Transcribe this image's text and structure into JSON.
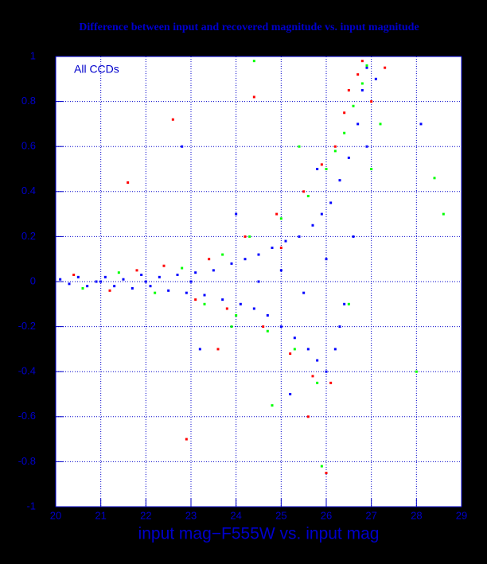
{
  "chart_data": {
    "type": "scatter",
    "title": "Difference between input and recovered magnitude vs. input magnitude",
    "annotation": "All CCDs",
    "xlabel": "input mag−F555W vs. input mag",
    "xlim": [
      20,
      29
    ],
    "ylim": [
      -1,
      1
    ],
    "xticks": [
      20,
      21,
      22,
      23,
      24,
      25,
      26,
      27,
      28,
      29
    ],
    "yticks": [
      -1,
      -0.8,
      -0.6,
      -0.4,
      -0.2,
      0,
      0.2,
      0.4,
      0.6,
      0.8,
      1
    ],
    "grid": true,
    "series": [
      {
        "name": "blue",
        "color": "#0000ff",
        "x": [
          20.1,
          20.3,
          20.5,
          20.7,
          20.9,
          21.1,
          21.3,
          21.5,
          21.7,
          21.9,
          22.1,
          22.3,
          22.5,
          22.7,
          22.9,
          23.1,
          23.3,
          23.5,
          23.7,
          23.9,
          24.1,
          24.2,
          24.4,
          24.5,
          24.7,
          24.8,
          25.0,
          25.1,
          25.3,
          25.4,
          25.6,
          25.7,
          25.8,
          25.9,
          26.0,
          26.1,
          26.2,
          26.3,
          26.4,
          26.5,
          26.6,
          26.7,
          26.8,
          26.9,
          24.5,
          25.0,
          25.5,
          26.0,
          23.0,
          22.0,
          21.0,
          26.3,
          25.8,
          24.0,
          23.2,
          27.1,
          25.2,
          22.8,
          26.9,
          28.1
        ],
        "values": [
          0.01,
          -0.01,
          0.02,
          -0.02,
          0.0,
          0.02,
          -0.02,
          0.01,
          -0.03,
          0.03,
          -0.02,
          0.02,
          -0.04,
          0.03,
          -0.05,
          0.04,
          -0.06,
          0.05,
          -0.08,
          0.08,
          -0.1,
          0.1,
          -0.12,
          0.12,
          -0.15,
          0.15,
          -0.2,
          0.18,
          -0.25,
          0.2,
          -0.3,
          0.25,
          -0.35,
          0.3,
          -0.4,
          0.35,
          -0.3,
          0.45,
          -0.1,
          0.55,
          0.2,
          0.7,
          0.85,
          0.95,
          0.0,
          0.05,
          -0.05,
          0.1,
          0.0,
          0.0,
          0.0,
          -0.2,
          0.5,
          0.3,
          -0.3,
          0.9,
          -0.5,
          0.6,
          0.6,
          0.7
        ]
      },
      {
        "name": "red",
        "color": "#ff0000",
        "x": [
          20.4,
          21.2,
          21.8,
          22.4,
          22.6,
          23.1,
          23.4,
          23.8,
          24.2,
          24.6,
          24.9,
          25.2,
          25.5,
          25.7,
          25.9,
          26.1,
          26.2,
          26.4,
          26.5,
          26.7,
          26.8,
          27.0,
          22.9,
          21.6,
          25.6,
          24.4,
          26.0,
          23.6,
          27.3,
          25.0
        ],
        "values": [
          0.03,
          -0.04,
          0.05,
          0.07,
          0.72,
          -0.08,
          0.1,
          -0.12,
          0.2,
          -0.2,
          0.3,
          -0.32,
          0.4,
          -0.42,
          0.52,
          -0.45,
          0.6,
          0.75,
          0.85,
          0.92,
          0.98,
          0.8,
          -0.7,
          0.44,
          -0.6,
          0.82,
          -0.85,
          -0.3,
          0.95,
          0.15
        ]
      },
      {
        "name": "green",
        "color": "#00ff00",
        "x": [
          20.6,
          21.4,
          22.2,
          22.8,
          23.3,
          23.7,
          24.0,
          24.3,
          24.7,
          25.0,
          25.3,
          25.6,
          25.8,
          26.0,
          26.2,
          26.4,
          26.6,
          26.8,
          26.9,
          27.0,
          27.2,
          24.8,
          25.4,
          26.5,
          28.4,
          28.6,
          28.0,
          23.9,
          25.9,
          24.4
        ],
        "values": [
          -0.03,
          0.04,
          -0.05,
          0.06,
          -0.1,
          0.12,
          -0.15,
          0.2,
          -0.22,
          0.28,
          -0.3,
          0.38,
          -0.45,
          0.5,
          0.58,
          0.66,
          0.78,
          0.88,
          0.96,
          0.5,
          0.7,
          -0.55,
          0.6,
          -0.1,
          0.46,
          0.3,
          -0.4,
          -0.2,
          -0.82,
          0.98
        ]
      }
    ]
  }
}
